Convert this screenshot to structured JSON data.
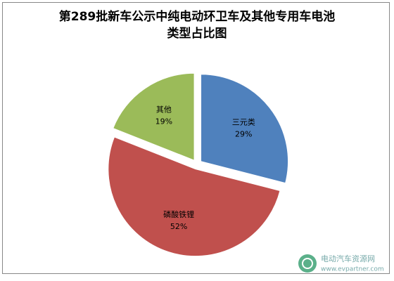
{
  "chart_data": {
    "type": "pie",
    "title": [
      "第289批新车公示中纯电动环卫车及其他专用车电池",
      "类型占比图"
    ],
    "categories": [
      "三元类",
      "磷酸铁锂",
      "其他"
    ],
    "values": [
      29,
      52,
      19
    ],
    "value_labels": [
      "29%",
      "52%",
      "19%"
    ],
    "colors": [
      "#4f81bd",
      "#c0504d",
      "#9bbb59"
    ],
    "exploded": true
  },
  "watermark": {
    "name": "电动汽车资源网",
    "url": "www.evpartner.com"
  }
}
